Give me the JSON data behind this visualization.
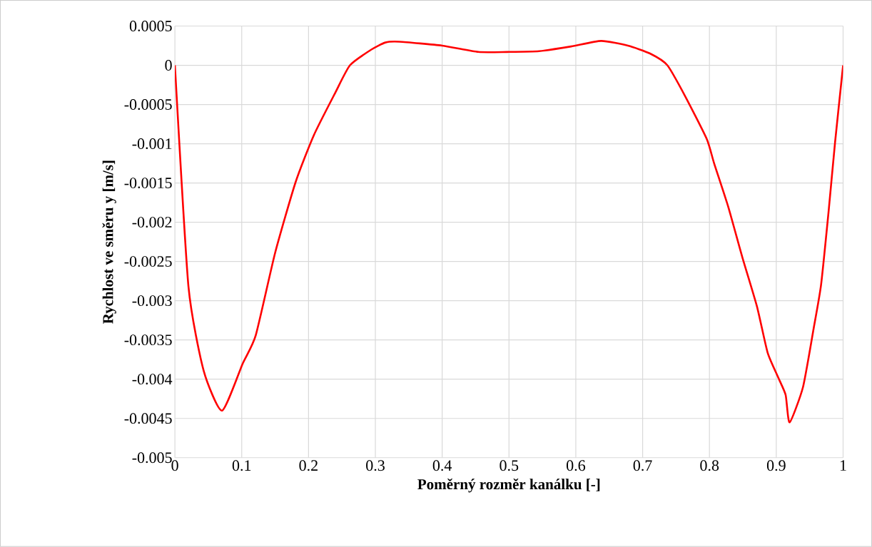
{
  "chart_data": {
    "type": "line",
    "xlabel": "Poměrný rozměr kanálku [-]",
    "ylabel": "Rychlost ve směru y [m/s]",
    "xlim": [
      0,
      1
    ],
    "ylim": [
      -0.005,
      0.0005
    ],
    "xticks": [
      0,
      0.1,
      0.2,
      0.3,
      0.4,
      0.5,
      0.6,
      0.7,
      0.8,
      0.9,
      1
    ],
    "yticks": [
      0.0005,
      0,
      -0.0005,
      -0.001,
      -0.0015,
      -0.002,
      -0.0025,
      -0.003,
      -0.0035,
      -0.004,
      -0.0045,
      -0.005
    ],
    "grid": true,
    "marker": "none",
    "line_style": "solid",
    "series": [
      {
        "color": "#ff0000",
        "x": [
          0,
          0.0203,
          0.043,
          0.0705,
          0.1015,
          0.121,
          0.15,
          0.1806,
          0.208,
          0.24,
          0.262,
          0.294,
          0.315,
          0.336,
          0.4,
          0.454,
          0.497,
          0.545,
          0.593,
          0.638,
          0.678,
          0.711,
          0.737,
          0.764,
          0.796,
          0.807,
          0.828,
          0.849,
          0.871,
          0.887,
          0.903,
          0.914,
          0.92,
          0.94,
          0.956,
          0.967,
          0.978,
          0.988,
          1
        ],
        "values": [
          0,
          -0.00282,
          -0.00389,
          -0.0044,
          -0.0038,
          -0.00344,
          -0.00239,
          -0.00149,
          -0.00089,
          -0.00035,
          0,
          0.0002,
          0.00029,
          0.0003,
          0.00025,
          0.00017,
          0.00017,
          0.00018,
          0.00024,
          0.00031,
          0.00025,
          0.00015,
          0,
          -0.0004,
          -0.00094,
          -0.00125,
          -0.0018,
          -0.00244,
          -0.00307,
          -0.00366,
          -0.00398,
          -0.0042,
          -0.00455,
          -0.0041,
          -0.00335,
          -0.0028,
          -0.00189,
          -0.00098,
          0
        ]
      }
    ]
  }
}
